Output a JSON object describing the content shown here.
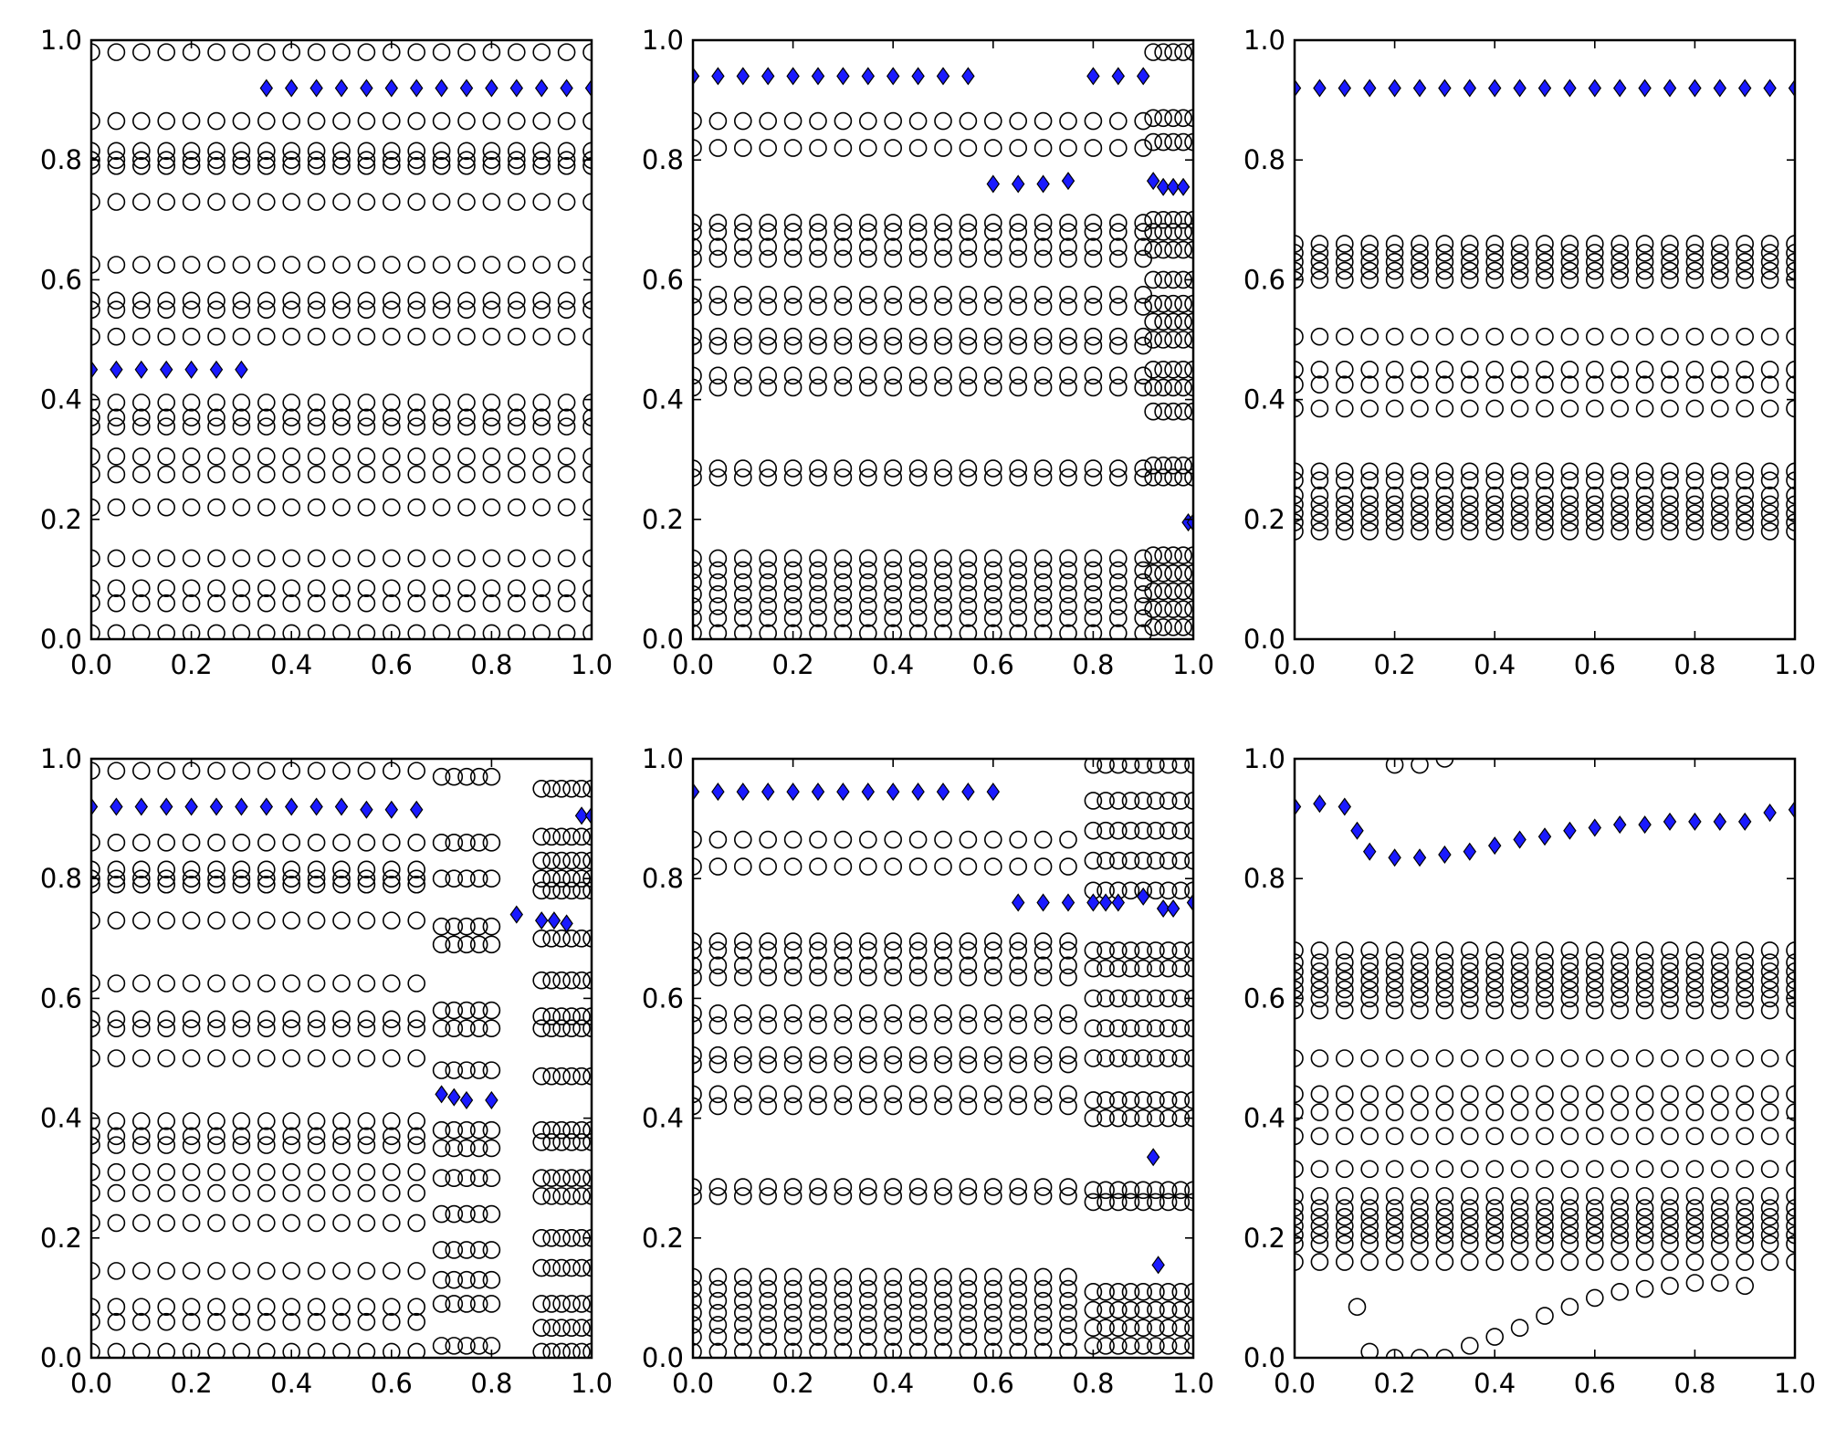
{
  "figure": {
    "background": "#ffffff",
    "grid": "off",
    "legend": "none"
  },
  "chart_data": [
    {
      "type": "scatter",
      "xlim": [
        0,
        1
      ],
      "ylim": [
        0,
        1
      ],
      "xticks": [
        "0.0",
        "0.2",
        "0.4",
        "0.6",
        "0.8",
        "1.0"
      ],
      "yticks": [
        "0.0",
        "0.2",
        "0.4",
        "0.6",
        "0.8",
        "1.0"
      ],
      "series": [
        {
          "marker": "open-circle",
          "color": "#000000",
          "x_start": 0,
          "x_end": 1,
          "x_step": 0.05,
          "levels": [
            0.01,
            0.06,
            0.085,
            0.135,
            0.22,
            0.275,
            0.305,
            0.355,
            0.37,
            0.395,
            0.505,
            0.55,
            0.565,
            0.625,
            0.73,
            0.79,
            0.8,
            0.815,
            0.865,
            0.98
          ]
        },
        {
          "marker": "diamond",
          "color": "#1a1aff",
          "points": [
            [
              0,
              0.45
            ],
            [
              0.05,
              0.45
            ],
            [
              0.1,
              0.45
            ],
            [
              0.15,
              0.45
            ],
            [
              0.2,
              0.45
            ],
            [
              0.25,
              0.45
            ],
            [
              0.3,
              0.45
            ],
            [
              0.35,
              0.92
            ],
            [
              0.4,
              0.92
            ],
            [
              0.45,
              0.92
            ],
            [
              0.5,
              0.92
            ],
            [
              0.55,
              0.92
            ],
            [
              0.6,
              0.92
            ],
            [
              0.65,
              0.92
            ],
            [
              0.7,
              0.92
            ],
            [
              0.75,
              0.92
            ],
            [
              0.8,
              0.92
            ],
            [
              0.85,
              0.92
            ],
            [
              0.9,
              0.92
            ],
            [
              0.95,
              0.92
            ],
            [
              1.0,
              0.92
            ]
          ]
        }
      ]
    },
    {
      "type": "scatter",
      "xlim": [
        0,
        1
      ],
      "ylim": [
        0,
        1
      ],
      "xticks": [
        "0.0",
        "0.2",
        "0.4",
        "0.6",
        "0.8",
        "1.0"
      ],
      "yticks": [
        "0.0",
        "0.2",
        "0.4",
        "0.6",
        "0.8",
        "1.0"
      ],
      "series": [
        {
          "marker": "open-circle",
          "color": "#000000",
          "x_start": 0,
          "x_end": 0.9,
          "x_step": 0.05,
          "levels": [
            0.01,
            0.035,
            0.055,
            0.075,
            0.095,
            0.115,
            0.135,
            0.27,
            0.285,
            0.42,
            0.44,
            0.49,
            0.505,
            0.555,
            0.575,
            0.635,
            0.655,
            0.68,
            0.695,
            0.82,
            0.865
          ]
        },
        {
          "marker": "open-circle",
          "color": "#000000",
          "x_start": 0.92,
          "x_end": 1.0,
          "x_step": 0.02,
          "levels": [
            0.02,
            0.05,
            0.08,
            0.11,
            0.14,
            0.27,
            0.29,
            0.38,
            0.42,
            0.45,
            0.5,
            0.53,
            0.56,
            0.6,
            0.65,
            0.68,
            0.7,
            0.83,
            0.87,
            0.98
          ]
        },
        {
          "marker": "diamond",
          "color": "#1a1aff",
          "points": [
            [
              0,
              0.94
            ],
            [
              0.05,
              0.94
            ],
            [
              0.1,
              0.94
            ],
            [
              0.15,
              0.94
            ],
            [
              0.2,
              0.94
            ],
            [
              0.25,
              0.94
            ],
            [
              0.3,
              0.94
            ],
            [
              0.35,
              0.94
            ],
            [
              0.4,
              0.94
            ],
            [
              0.45,
              0.94
            ],
            [
              0.5,
              0.94
            ],
            [
              0.55,
              0.94
            ],
            [
              0.6,
              0.76
            ],
            [
              0.65,
              0.76
            ],
            [
              0.7,
              0.76
            ],
            [
              0.75,
              0.765
            ],
            [
              0.8,
              0.94
            ],
            [
              0.85,
              0.94
            ],
            [
              0.9,
              0.94
            ],
            [
              0.92,
              0.765
            ],
            [
              0.94,
              0.755
            ],
            [
              0.96,
              0.755
            ],
            [
              0.98,
              0.755
            ],
            [
              0.99,
              0.195
            ],
            [
              1.0,
              0.195
            ]
          ]
        }
      ]
    },
    {
      "type": "scatter",
      "xlim": [
        0,
        1
      ],
      "ylim": [
        0,
        1
      ],
      "xticks": [
        "0.0",
        "0.2",
        "0.4",
        "0.6",
        "0.8",
        "1.0"
      ],
      "yticks": [
        "0.0",
        "0.2",
        "0.4",
        "0.6",
        "0.8",
        "1.0"
      ],
      "series": [
        {
          "marker": "open-circle",
          "color": "#000000",
          "x_start": 0,
          "x_end": 1,
          "x_step": 0.05,
          "levels": [
            0.18,
            0.195,
            0.21,
            0.225,
            0.24,
            0.265,
            0.28,
            0.385,
            0.425,
            0.45,
            0.505,
            0.6,
            0.615,
            0.63,
            0.645,
            0.66
          ]
        },
        {
          "marker": "diamond",
          "color": "#1a1aff",
          "points": [
            [
              0,
              0.92
            ],
            [
              0.05,
              0.92
            ],
            [
              0.1,
              0.92
            ],
            [
              0.15,
              0.92
            ],
            [
              0.2,
              0.92
            ],
            [
              0.25,
              0.92
            ],
            [
              0.3,
              0.92
            ],
            [
              0.35,
              0.92
            ],
            [
              0.4,
              0.92
            ],
            [
              0.45,
              0.92
            ],
            [
              0.5,
              0.92
            ],
            [
              0.55,
              0.92
            ],
            [
              0.6,
              0.92
            ],
            [
              0.65,
              0.92
            ],
            [
              0.7,
              0.92
            ],
            [
              0.75,
              0.92
            ],
            [
              0.8,
              0.92
            ],
            [
              0.85,
              0.92
            ],
            [
              0.9,
              0.92
            ],
            [
              0.95,
              0.92
            ],
            [
              1.0,
              0.92
            ]
          ]
        }
      ]
    },
    {
      "type": "scatter",
      "xlim": [
        0,
        1
      ],
      "ylim": [
        0,
        1
      ],
      "xticks": [
        "0.0",
        "0.2",
        "0.4",
        "0.6",
        "0.8",
        "1.0"
      ],
      "yticks": [
        "0.0",
        "0.2",
        "0.4",
        "0.6",
        "0.8",
        "1.0"
      ],
      "series": [
        {
          "marker": "open-circle",
          "color": "#000000",
          "x_start": 0,
          "x_end": 0.65,
          "x_step": 0.05,
          "levels": [
            0.01,
            0.06,
            0.085,
            0.145,
            0.225,
            0.275,
            0.31,
            0.355,
            0.37,
            0.395,
            0.5,
            0.55,
            0.565,
            0.625,
            0.73,
            0.79,
            0.8,
            0.815,
            0.86,
            0.98
          ]
        },
        {
          "marker": "open-circle",
          "color": "#000000",
          "x_start": 0.7,
          "x_end": 0.8,
          "x_step": 0.025,
          "levels": [
            0.02,
            0.09,
            0.13,
            0.18,
            0.24,
            0.3,
            0.35,
            0.38,
            0.48,
            0.55,
            0.58,
            0.69,
            0.72,
            0.8,
            0.86,
            0.97
          ]
        },
        {
          "marker": "open-circle",
          "color": "#000000",
          "x_start": 0.9,
          "x_end": 1.0,
          "x_step": 0.02,
          "levels": [
            0.01,
            0.05,
            0.09,
            0.15,
            0.2,
            0.27,
            0.3,
            0.36,
            0.38,
            0.47,
            0.55,
            0.57,
            0.63,
            0.7,
            0.78,
            0.8,
            0.83,
            0.87,
            0.95
          ]
        },
        {
          "marker": "diamond",
          "color": "#1a1aff",
          "points": [
            [
              0,
              0.92
            ],
            [
              0.05,
              0.92
            ],
            [
              0.1,
              0.92
            ],
            [
              0.15,
              0.92
            ],
            [
              0.2,
              0.92
            ],
            [
              0.25,
              0.92
            ],
            [
              0.3,
              0.92
            ],
            [
              0.35,
              0.92
            ],
            [
              0.4,
              0.92
            ],
            [
              0.45,
              0.92
            ],
            [
              0.5,
              0.92
            ],
            [
              0.55,
              0.915
            ],
            [
              0.6,
              0.915
            ],
            [
              0.65,
              0.915
            ],
            [
              0.7,
              0.44
            ],
            [
              0.725,
              0.435
            ],
            [
              0.75,
              0.43
            ],
            [
              0.8,
              0.43
            ],
            [
              0.85,
              0.74
            ],
            [
              0.9,
              0.73
            ],
            [
              0.925,
              0.73
            ],
            [
              0.95,
              0.725
            ],
            [
              0.98,
              0.905
            ],
            [
              1.0,
              0.905
            ]
          ]
        }
      ]
    },
    {
      "type": "scatter",
      "xlim": [
        0,
        1
      ],
      "ylim": [
        0,
        1
      ],
      "xticks": [
        "0.0",
        "0.2",
        "0.4",
        "0.6",
        "0.8",
        "1.0"
      ],
      "yticks": [
        "0.0",
        "0.2",
        "0.4",
        "0.6",
        "0.8",
        "1.0"
      ],
      "series": [
        {
          "marker": "open-circle",
          "color": "#000000",
          "x_start": 0,
          "x_end": 0.75,
          "x_step": 0.05,
          "levels": [
            0.01,
            0.035,
            0.055,
            0.075,
            0.095,
            0.115,
            0.135,
            0.27,
            0.285,
            0.42,
            0.44,
            0.49,
            0.505,
            0.555,
            0.575,
            0.635,
            0.655,
            0.68,
            0.695,
            0.82,
            0.865
          ]
        },
        {
          "marker": "open-circle",
          "color": "#000000",
          "x_start": 0.8,
          "x_end": 1.0,
          "x_step": 0.025,
          "levels": [
            0.02,
            0.05,
            0.08,
            0.11,
            0.26,
            0.28,
            0.4,
            0.43,
            0.5,
            0.55,
            0.6,
            0.65,
            0.68,
            0.78,
            0.83,
            0.88,
            0.93,
            0.99
          ]
        },
        {
          "marker": "diamond",
          "color": "#1a1aff",
          "points": [
            [
              0,
              0.945
            ],
            [
              0.05,
              0.945
            ],
            [
              0.1,
              0.945
            ],
            [
              0.15,
              0.945
            ],
            [
              0.2,
              0.945
            ],
            [
              0.25,
              0.945
            ],
            [
              0.3,
              0.945
            ],
            [
              0.35,
              0.945
            ],
            [
              0.4,
              0.945
            ],
            [
              0.45,
              0.945
            ],
            [
              0.5,
              0.945
            ],
            [
              0.55,
              0.945
            ],
            [
              0.6,
              0.945
            ],
            [
              0.65,
              0.76
            ],
            [
              0.7,
              0.76
            ],
            [
              0.75,
              0.76
            ],
            [
              0.8,
              0.76
            ],
            [
              0.825,
              0.76
            ],
            [
              0.85,
              0.76
            ],
            [
              0.9,
              0.77
            ],
            [
              0.92,
              0.335
            ],
            [
              0.93,
              0.155
            ],
            [
              0.94,
              0.75
            ],
            [
              0.96,
              0.75
            ],
            [
              1.0,
              0.76
            ]
          ]
        }
      ]
    },
    {
      "type": "scatter",
      "xlim": [
        0,
        1
      ],
      "ylim": [
        0,
        1
      ],
      "xticks": [
        "0.0",
        "0.2",
        "0.4",
        "0.6",
        "0.8",
        "1.0"
      ],
      "yticks": [
        "0.0",
        "0.2",
        "0.4",
        "0.6",
        "0.8",
        "1.0"
      ],
      "series": [
        {
          "marker": "open-circle",
          "color": "#000000",
          "x_start": 0,
          "x_end": 1,
          "x_step": 0.05,
          "levels": [
            0.16,
            0.19,
            0.205,
            0.22,
            0.235,
            0.25,
            0.27,
            0.315,
            0.37,
            0.41,
            0.44,
            0.5,
            0.58,
            0.6,
            0.615,
            0.63,
            0.645,
            0.66,
            0.68
          ]
        },
        {
          "marker": "open-circle",
          "color": "#000000",
          "points": [
            [
              0.125,
              0.085
            ],
            [
              0.15,
              0.01
            ],
            [
              0.2,
              0.0
            ],
            [
              0.25,
              0.0
            ],
            [
              0.3,
              0.0
            ],
            [
              0.35,
              0.02
            ],
            [
              0.4,
              0.035
            ],
            [
              0.45,
              0.05
            ],
            [
              0.5,
              0.07
            ],
            [
              0.55,
              0.085
            ],
            [
              0.6,
              0.1
            ],
            [
              0.65,
              0.11
            ],
            [
              0.7,
              0.115
            ],
            [
              0.75,
              0.12
            ],
            [
              0.8,
              0.125
            ],
            [
              0.85,
              0.125
            ],
            [
              0.9,
              0.12
            ],
            [
              0.2,
              0.99
            ],
            [
              0.25,
              0.99
            ],
            [
              0.3,
              1.0
            ]
          ]
        },
        {
          "marker": "diamond",
          "color": "#1a1aff",
          "points": [
            [
              0,
              0.92
            ],
            [
              0.05,
              0.925
            ],
            [
              0.1,
              0.92
            ],
            [
              0.125,
              0.88
            ],
            [
              0.15,
              0.845
            ],
            [
              0.2,
              0.835
            ],
            [
              0.25,
              0.835
            ],
            [
              0.3,
              0.84
            ],
            [
              0.35,
              0.845
            ],
            [
              0.4,
              0.855
            ],
            [
              0.45,
              0.865
            ],
            [
              0.5,
              0.87
            ],
            [
              0.55,
              0.88
            ],
            [
              0.6,
              0.885
            ],
            [
              0.65,
              0.89
            ],
            [
              0.7,
              0.89
            ],
            [
              0.75,
              0.895
            ],
            [
              0.8,
              0.895
            ],
            [
              0.85,
              0.895
            ],
            [
              0.9,
              0.895
            ],
            [
              0.95,
              0.91
            ],
            [
              1.0,
              0.915
            ]
          ]
        }
      ]
    }
  ]
}
